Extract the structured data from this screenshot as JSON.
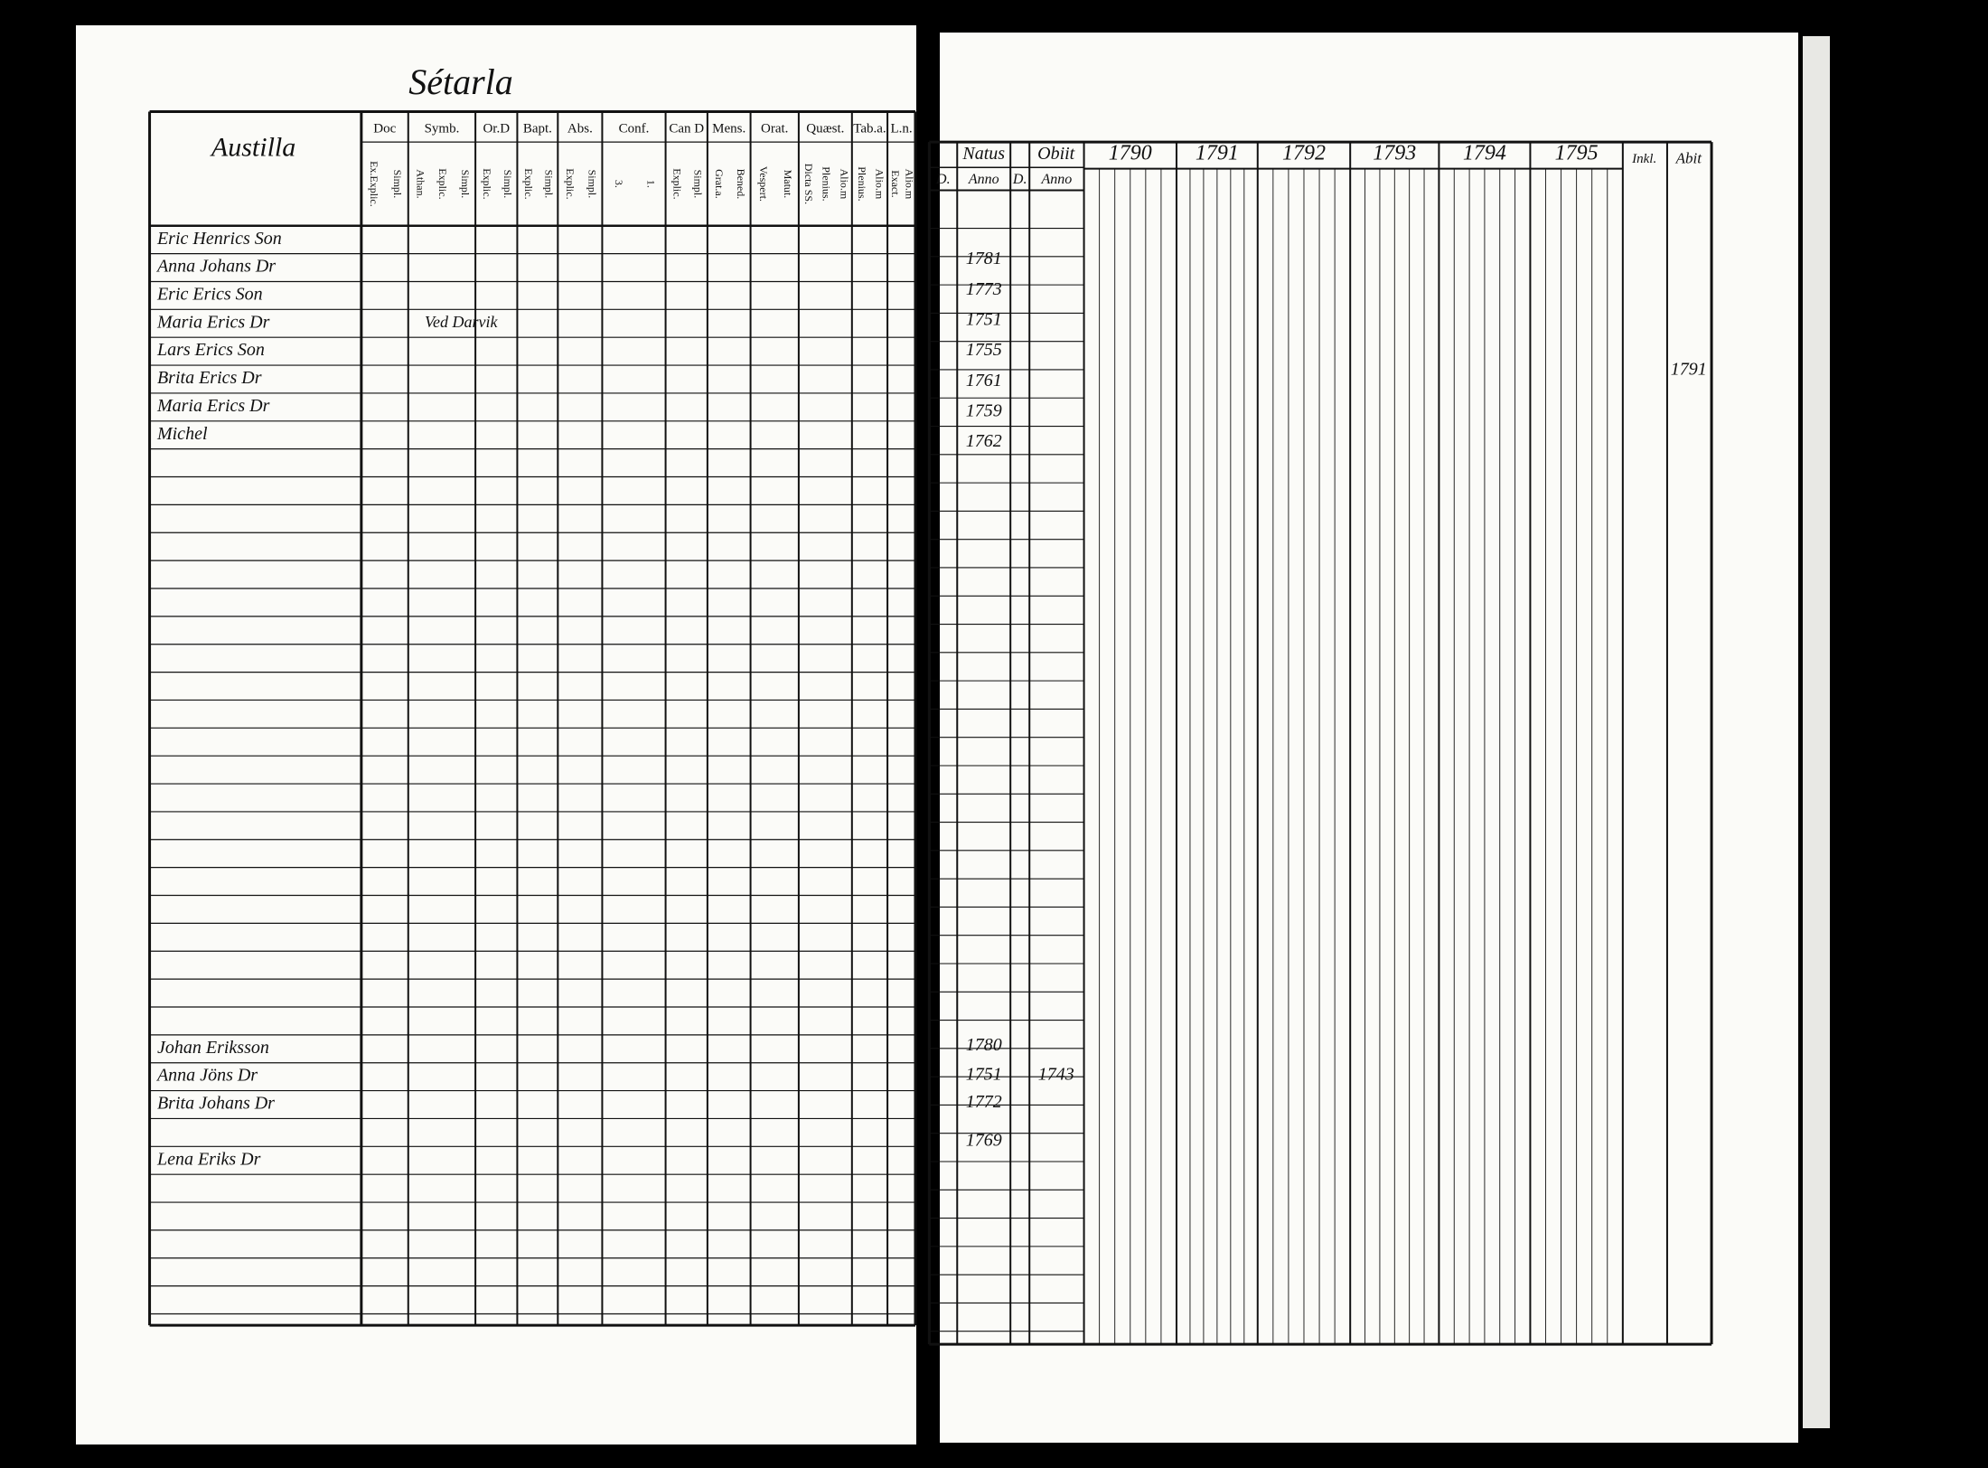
{
  "left_page": {
    "heading": "Sétarla",
    "name_header": "Austilla",
    "columns": [
      {
        "title": "Doc",
        "sub": [
          "Ex.Explic.",
          "Simpl."
        ]
      },
      {
        "title": "Symb.",
        "sub": [
          "Athan.",
          "Explic.",
          "Simpl."
        ]
      },
      {
        "title": "Or.D",
        "sub": [
          "Explic.",
          "Simpl."
        ]
      },
      {
        "title": "Bapt.",
        "sub": [
          "Explic.",
          "Simpl."
        ]
      },
      {
        "title": "Abs.",
        "sub": [
          "Explic.",
          "Simpl."
        ]
      },
      {
        "title": "Conf.",
        "sub": [
          "3.",
          "1."
        ]
      },
      {
        "title": "Can D",
        "sub": [
          "Explic.",
          "Simpl."
        ]
      },
      {
        "title": "Mens.",
        "sub": [
          "Grat.a.",
          "Bened."
        ]
      },
      {
        "title": "Orat.",
        "sub": [
          "Vespert.",
          "Matut."
        ]
      },
      {
        "title": "Quæst.",
        "sub": [
          "Dicta SS.",
          "Plenius.",
          "Alio.m"
        ]
      },
      {
        "title": "Tab.a.",
        "sub": [
          "Plenius.",
          "Alio.m"
        ]
      },
      {
        "title": "L.n.",
        "sub": [
          "Exact.",
          "Alio.m"
        ]
      }
    ],
    "names": [
      "Eric Henrics Son",
      "Anna Johans Dr",
      "Eric Erics Son",
      "Maria Erics Dr",
      "Lars Erics Son",
      "Brita Erics Dr",
      "Maria Erics Dr",
      "Michel"
    ],
    "lower_names": [
      "Johan Eriksson",
      "Anna Jöns Dr",
      "Brita Johans Dr",
      "Lena Eriks Dr"
    ],
    "note": "Ved Darvik"
  },
  "right_page": {
    "natus": "Natus",
    "obiit": "Obiit",
    "sub": [
      "D.",
      "Anno",
      "D.",
      "Anno"
    ],
    "years": [
      "1790",
      "1791",
      "1792",
      "1793",
      "1794",
      "1795"
    ],
    "inkl": "Inkl.",
    "abit": "Abit",
    "birth_years": [
      "1781",
      "1773",
      "1751",
      "1755",
      "1761",
      "1759",
      "1762"
    ],
    "lower_birth_years": [
      "1780",
      "1751",
      "1772",
      "1769"
    ],
    "death_year": "1743",
    "left_year": "1791"
  }
}
